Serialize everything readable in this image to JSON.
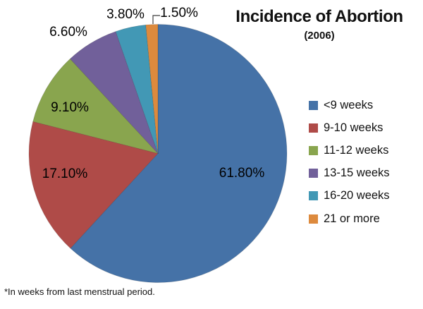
{
  "chart_data": {
    "type": "pie",
    "title": "Incidence of Abortion",
    "subtitle": "(2006)",
    "footnote": "*In weeks from last menstrual period.",
    "legend_position": "right",
    "start_angle_deg": 0,
    "direction": "clockwise",
    "value_unit": "percent",
    "slices": [
      {
        "label": "<9 weeks",
        "value": 61.8,
        "display": "61.80%",
        "color": "#4572A7"
      },
      {
        "label": "9-10 weeks",
        "value": 17.1,
        "display": "17.10%",
        "color": "#AF4B48"
      },
      {
        "label": "11-12 weeks",
        "value": 9.1,
        "display": "9.10%",
        "color": "#89A54E"
      },
      {
        "label": "13-15 weeks",
        "value": 6.6,
        "display": "6.60%",
        "color": "#71609A"
      },
      {
        "label": "16-20 weeks",
        "value": 3.8,
        "display": "3.80%",
        "color": "#4298B5"
      },
      {
        "label": "21 or more",
        "value": 1.5,
        "display": "1.50%",
        "color": "#DD8A3D"
      }
    ]
  }
}
